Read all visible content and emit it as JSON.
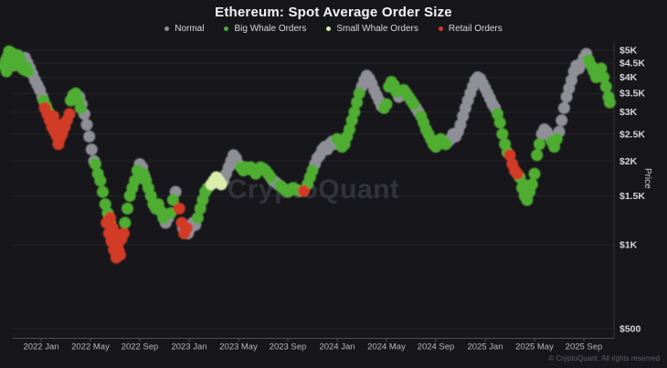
{
  "title": "Ethereum: Spot Average Order Size",
  "watermark": "CryptoQuant",
  "footer": "© CryptoQuant. All rights reserved",
  "colors": {
    "background": "#17171b",
    "grid": "#232329",
    "axis_line": "#4d4d55",
    "right_axis_line": "#33333a",
    "y_tick_text": "#d5d5d9",
    "x_tick_text": "#b7b7bd",
    "title_text": "#f4f4f6",
    "legend_text": "#d9d9dd",
    "watermark_text": "#32323a",
    "footer_text": "#5e5e65",
    "normal": "#8f8f97",
    "big_whale": "#4fae31",
    "small_whale": "#dcecac",
    "retail": "#d23b28"
  },
  "legend": [
    {
      "key": "normal",
      "label": "Normal",
      "color": "#8f8f97"
    },
    {
      "key": "big-whale",
      "label": "Big Whale Orders",
      "color": "#4fae31"
    },
    {
      "key": "small-whale",
      "label": "Small Whale Orders",
      "color": "#dcecac"
    },
    {
      "key": "retail",
      "label": "Retail Orders",
      "color": "#d23b28"
    }
  ],
  "y_axis": {
    "title": "Price",
    "scale": "log",
    "ticks": [
      {
        "label": "$5K",
        "value": 5000
      },
      {
        "label": "$4.5K",
        "value": 4500
      },
      {
        "label": "$4K",
        "value": 4000
      },
      {
        "label": "$3.5K",
        "value": 3500
      },
      {
        "label": "$3K",
        "value": 3000
      },
      {
        "label": "$2.5K",
        "value": 2500
      },
      {
        "label": "$2K",
        "value": 2000
      },
      {
        "label": "$1.5K",
        "value": 1500
      },
      {
        "label": "$1K",
        "value": 1000
      },
      {
        "label": "$500",
        "value": 500
      }
    ]
  },
  "x_axis": {
    "ticks": [
      {
        "label": "2022 Jan",
        "m": 3
      },
      {
        "label": "2022 May",
        "m": 7
      },
      {
        "label": "2022 Sep",
        "m": 11
      },
      {
        "label": "2023 Jan",
        "m": 15
      },
      {
        "label": "2023 May",
        "m": 19
      },
      {
        "label": "2023 Sep",
        "m": 23
      },
      {
        "label": "2024 Jan",
        "m": 27
      },
      {
        "label": "2024 May",
        "m": 31
      },
      {
        "label": "2024 Sep",
        "m": 35
      },
      {
        "label": "2025 Jan",
        "m": 39
      },
      {
        "label": "2025 May",
        "m": 43
      },
      {
        "label": "2025 Sep",
        "m": 47
      }
    ]
  },
  "chart_data": {
    "type": "scatter",
    "title": "Ethereum: Spot Average Order Size",
    "x_unit": "months, 0 = 2021 Oct",
    "y_unit": "ETH price USD (log scale)",
    "y_range": [
      500,
      5000
    ],
    "dot_radius": 6.5,
    "categories": {
      "n": {
        "label": "Normal",
        "color": "#8f8f97"
      },
      "b": {
        "label": "Big Whale Orders",
        "color": "#4fae31"
      },
      "s": {
        "label": "Small Whale Orders",
        "color": "#dcecac"
      },
      "r": {
        "label": "Retail Orders",
        "color": "#d23b28"
      }
    },
    "draw_order": [
      "n",
      "b",
      "s",
      "r"
    ],
    "points": [
      [
        0.0,
        4400,
        "b"
      ],
      [
        0.15,
        4600,
        "b"
      ],
      [
        0.3,
        4750,
        "b"
      ],
      [
        0.45,
        4850,
        "b"
      ],
      [
        0.6,
        4900,
        "b"
      ],
      [
        0.75,
        4800,
        "b"
      ],
      [
        0.9,
        4650,
        "b"
      ],
      [
        1.05,
        4500,
        "b"
      ],
      [
        1.2,
        4550,
        "b"
      ],
      [
        1.35,
        4400,
        "b"
      ],
      [
        1.5,
        4300,
        "b"
      ],
      [
        1.65,
        4250,
        "b"
      ],
      [
        1.8,
        4350,
        "b"
      ],
      [
        1.95,
        4200,
        "b"
      ],
      [
        0.2,
        4200,
        "b"
      ],
      [
        0.5,
        4500,
        "b"
      ],
      [
        0.8,
        4400,
        "b"
      ],
      [
        1.1,
        4800,
        "b"
      ],
      [
        0.4,
        4950,
        "b"
      ],
      [
        1.3,
        4650,
        "b"
      ],
      [
        1.7,
        4700,
        "n"
      ],
      [
        1.9,
        4500,
        "n"
      ],
      [
        2.1,
        4300,
        "n"
      ],
      [
        2.3,
        4100,
        "n"
      ],
      [
        2.5,
        3900,
        "n"
      ],
      [
        2.7,
        3750,
        "n"
      ],
      [
        2.9,
        3600,
        "n"
      ],
      [
        3.1,
        3400,
        "n"
      ],
      [
        3.2,
        3300,
        "b"
      ],
      [
        3.4,
        3150,
        "b"
      ],
      [
        3.6,
        3000,
        "b"
      ],
      [
        3.3,
        3100,
        "r"
      ],
      [
        3.5,
        2950,
        "r"
      ],
      [
        3.7,
        2800,
        "r"
      ],
      [
        3.9,
        2650,
        "r"
      ],
      [
        4.1,
        2550,
        "r"
      ],
      [
        4.3,
        2450,
        "r"
      ],
      [
        4.5,
        2400,
        "r"
      ],
      [
        4.7,
        2500,
        "r"
      ],
      [
        4.9,
        2650,
        "r"
      ],
      [
        5.1,
        2800,
        "r"
      ],
      [
        4.0,
        2900,
        "r"
      ],
      [
        4.6,
        2700,
        "r"
      ],
      [
        4.4,
        2300,
        "r"
      ],
      [
        5.3,
        2950,
        "r"
      ],
      [
        5.4,
        3300,
        "b"
      ],
      [
        5.6,
        3450,
        "b"
      ],
      [
        5.8,
        3500,
        "b"
      ],
      [
        6.0,
        3300,
        "b"
      ],
      [
        6.2,
        3100,
        "b"
      ],
      [
        6.1,
        3400,
        "n"
      ],
      [
        6.3,
        3200,
        "n"
      ],
      [
        6.5,
        2950,
        "n"
      ],
      [
        6.7,
        2700,
        "n"
      ],
      [
        6.9,
        2450,
        "n"
      ],
      [
        7.1,
        2200,
        "n"
      ],
      [
        7.3,
        2000,
        "n"
      ],
      [
        7.4,
        1950,
        "b"
      ],
      [
        7.6,
        1800,
        "b"
      ],
      [
        7.8,
        1700,
        "b"
      ],
      [
        8.0,
        1550,
        "b"
      ],
      [
        8.2,
        1400,
        "b"
      ],
      [
        8.4,
        1300,
        "b"
      ],
      [
        8.6,
        1200,
        "b"
      ],
      [
        8.3,
        1200,
        "r"
      ],
      [
        8.5,
        1100,
        "r"
      ],
      [
        8.7,
        1030,
        "r"
      ],
      [
        8.9,
        960,
        "r"
      ],
      [
        9.1,
        900,
        "r"
      ],
      [
        9.3,
        950,
        "r"
      ],
      [
        9.5,
        1050,
        "r"
      ],
      [
        9.7,
        1100,
        "r"
      ],
      [
        8.8,
        1150,
        "r"
      ],
      [
        9.2,
        1000,
        "r"
      ],
      [
        8.6,
        1250,
        "r"
      ],
      [
        9.0,
        1100,
        "r"
      ],
      [
        9.4,
        920,
        "r"
      ],
      [
        9.8,
        1200,
        "b"
      ],
      [
        10.0,
        1350,
        "b"
      ],
      [
        10.2,
        1500,
        "b"
      ],
      [
        10.4,
        1600,
        "b"
      ],
      [
        10.6,
        1700,
        "b"
      ],
      [
        10.8,
        1850,
        "b"
      ],
      [
        11.0,
        1950,
        "n"
      ],
      [
        11.2,
        1900,
        "n"
      ],
      [
        11.4,
        1750,
        "n"
      ],
      [
        11.3,
        1800,
        "b"
      ],
      [
        11.5,
        1700,
        "b"
      ],
      [
        11.7,
        1600,
        "b"
      ],
      [
        11.9,
        1500,
        "b"
      ],
      [
        12.1,
        1400,
        "b"
      ],
      [
        12.3,
        1350,
        "b"
      ],
      [
        12.5,
        1400,
        "b"
      ],
      [
        12.7,
        1320,
        "b"
      ],
      [
        12.9,
        1250,
        "b"
      ],
      [
        13.1,
        1200,
        "n"
      ],
      [
        13.3,
        1250,
        "n"
      ],
      [
        13.5,
        1300,
        "b"
      ],
      [
        13.7,
        1450,
        "b"
      ],
      [
        13.9,
        1550,
        "n"
      ],
      [
        14.2,
        1350,
        "r"
      ],
      [
        14.4,
        1200,
        "r"
      ],
      [
        14.6,
        1100,
        "r"
      ],
      [
        14.8,
        1150,
        "r"
      ],
      [
        14.5,
        1150,
        "n"
      ],
      [
        14.9,
        1100,
        "n"
      ],
      [
        15.1,
        1150,
        "n"
      ],
      [
        15.3,
        1200,
        "n"
      ],
      [
        15.5,
        1180,
        "n"
      ],
      [
        15.7,
        1250,
        "b"
      ],
      [
        15.9,
        1350,
        "b"
      ],
      [
        16.1,
        1450,
        "b"
      ],
      [
        16.3,
        1550,
        "b"
      ],
      [
        16.5,
        1600,
        "b"
      ],
      [
        16.8,
        1650,
        "s"
      ],
      [
        17.0,
        1700,
        "s"
      ],
      [
        17.2,
        1750,
        "s"
      ],
      [
        17.4,
        1700,
        "s"
      ],
      [
        17.6,
        1650,
        "s"
      ],
      [
        17.8,
        1700,
        "n"
      ],
      [
        18.0,
        1800,
        "n"
      ],
      [
        18.2,
        1900,
        "n"
      ],
      [
        18.4,
        2000,
        "n"
      ],
      [
        18.6,
        2100,
        "n"
      ],
      [
        18.8,
        2050,
        "n"
      ],
      [
        19.0,
        1950,
        "n"
      ],
      [
        19.2,
        1900,
        "b"
      ],
      [
        19.4,
        1850,
        "b"
      ],
      [
        19.6,
        1900,
        "b"
      ],
      [
        19.8,
        1870,
        "b"
      ],
      [
        20.0,
        1900,
        "b"
      ],
      [
        20.2,
        1850,
        "b"
      ],
      [
        20.4,
        1800,
        "b"
      ],
      [
        20.6,
        1850,
        "b"
      ],
      [
        20.8,
        1900,
        "b"
      ],
      [
        21.0,
        1880,
        "b"
      ],
      [
        21.2,
        1850,
        "b"
      ],
      [
        21.4,
        1800,
        "b"
      ],
      [
        21.6,
        1750,
        "b"
      ],
      [
        21.8,
        1700,
        "n"
      ],
      [
        22.0,
        1680,
        "n"
      ],
      [
        22.2,
        1650,
        "n"
      ],
      [
        22.4,
        1630,
        "b"
      ],
      [
        22.6,
        1600,
        "b"
      ],
      [
        22.8,
        1570,
        "b"
      ],
      [
        23.0,
        1550,
        "b"
      ],
      [
        23.2,
        1570,
        "b"
      ],
      [
        23.4,
        1600,
        "b"
      ],
      [
        23.7,
        1580,
        "b"
      ],
      [
        24.0,
        1560,
        "b"
      ],
      [
        24.3,
        1560,
        "r"
      ],
      [
        24.6,
        1650,
        "b"
      ],
      [
        24.8,
        1750,
        "b"
      ],
      [
        25.0,
        1850,
        "b"
      ],
      [
        25.2,
        1950,
        "n"
      ],
      [
        25.4,
        2050,
        "n"
      ],
      [
        25.6,
        2100,
        "n"
      ],
      [
        25.8,
        2200,
        "n"
      ],
      [
        26.0,
        2250,
        "n"
      ],
      [
        26.2,
        2200,
        "n"
      ],
      [
        26.4,
        2300,
        "n"
      ],
      [
        26.6,
        2350,
        "n"
      ],
      [
        26.8,
        2300,
        "n"
      ],
      [
        27.0,
        2400,
        "b"
      ],
      [
        27.2,
        2350,
        "b"
      ],
      [
        27.4,
        2250,
        "b"
      ],
      [
        27.6,
        2300,
        "b"
      ],
      [
        27.8,
        2450,
        "b"
      ],
      [
        28.0,
        2600,
        "b"
      ],
      [
        28.2,
        2800,
        "b"
      ],
      [
        28.4,
        3000,
        "b"
      ],
      [
        28.6,
        3250,
        "b"
      ],
      [
        28.8,
        3500,
        "b"
      ],
      [
        29.0,
        3700,
        "n"
      ],
      [
        29.2,
        3900,
        "n"
      ],
      [
        29.4,
        4050,
        "n"
      ],
      [
        29.6,
        3950,
        "n"
      ],
      [
        29.8,
        3800,
        "n"
      ],
      [
        30.0,
        3600,
        "n"
      ],
      [
        30.2,
        3450,
        "n"
      ],
      [
        30.4,
        3300,
        "n"
      ],
      [
        30.6,
        3150,
        "n"
      ],
      [
        30.8,
        3100,
        "b"
      ],
      [
        31.0,
        3200,
        "b"
      ],
      [
        31.2,
        3700,
        "b"
      ],
      [
        31.4,
        3850,
        "b"
      ],
      [
        31.6,
        3750,
        "b"
      ],
      [
        31.8,
        3550,
        "b"
      ],
      [
        32.0,
        3400,
        "n"
      ],
      [
        32.2,
        3500,
        "n"
      ],
      [
        32.4,
        3600,
        "b"
      ],
      [
        32.6,
        3500,
        "b"
      ],
      [
        32.8,
        3400,
        "b"
      ],
      [
        33.0,
        3300,
        "b"
      ],
      [
        33.2,
        3200,
        "b"
      ],
      [
        33.4,
        3100,
        "n"
      ],
      [
        33.6,
        3000,
        "n"
      ],
      [
        33.8,
        2900,
        "b"
      ],
      [
        34.0,
        2750,
        "b"
      ],
      [
        34.2,
        2600,
        "b"
      ],
      [
        34.4,
        2500,
        "b"
      ],
      [
        34.6,
        2400,
        "b"
      ],
      [
        34.8,
        2300,
        "b"
      ],
      [
        35.0,
        2250,
        "b"
      ],
      [
        35.2,
        2300,
        "b"
      ],
      [
        35.4,
        2400,
        "b"
      ],
      [
        35.6,
        2350,
        "b"
      ],
      [
        35.8,
        2300,
        "b"
      ],
      [
        36.0,
        2350,
        "n"
      ],
      [
        36.2,
        2400,
        "n"
      ],
      [
        36.4,
        2500,
        "n"
      ],
      [
        36.6,
        2450,
        "n"
      ],
      [
        36.8,
        2550,
        "n"
      ],
      [
        37.0,
        2700,
        "n"
      ],
      [
        37.2,
        2900,
        "n"
      ],
      [
        37.4,
        3100,
        "n"
      ],
      [
        37.6,
        3300,
        "n"
      ],
      [
        37.8,
        3500,
        "n"
      ],
      [
        38.0,
        3700,
        "n"
      ],
      [
        38.2,
        3900,
        "n"
      ],
      [
        38.4,
        4000,
        "n"
      ],
      [
        38.6,
        3950,
        "n"
      ],
      [
        38.8,
        3800,
        "n"
      ],
      [
        39.0,
        3650,
        "n"
      ],
      [
        39.2,
        3500,
        "n"
      ],
      [
        39.4,
        3350,
        "n"
      ],
      [
        39.6,
        3200,
        "n"
      ],
      [
        39.8,
        3100,
        "n"
      ],
      [
        40.0,
        2950,
        "b"
      ],
      [
        40.2,
        2750,
        "b"
      ],
      [
        40.4,
        2500,
        "b"
      ],
      [
        40.6,
        2300,
        "b"
      ],
      [
        40.8,
        2150,
        "b"
      ],
      [
        41.0,
        2100,
        "r"
      ],
      [
        41.2,
        1950,
        "r"
      ],
      [
        41.4,
        1850,
        "r"
      ],
      [
        41.6,
        1800,
        "r"
      ],
      [
        41.8,
        1750,
        "b"
      ],
      [
        42.0,
        1600,
        "b"
      ],
      [
        42.2,
        1500,
        "b"
      ],
      [
        42.4,
        1450,
        "b"
      ],
      [
        42.6,
        1550,
        "b"
      ],
      [
        42.8,
        1650,
        "b"
      ],
      [
        43.0,
        1800,
        "b"
      ],
      [
        42.1,
        1650,
        "b"
      ],
      [
        42.3,
        1600,
        "b"
      ],
      [
        43.2,
        2100,
        "b"
      ],
      [
        43.4,
        2300,
        "b"
      ],
      [
        43.6,
        2500,
        "n"
      ],
      [
        43.8,
        2600,
        "n"
      ],
      [
        44.0,
        2550,
        "n"
      ],
      [
        44.2,
        2450,
        "n"
      ],
      [
        44.4,
        2350,
        "b"
      ],
      [
        44.6,
        2250,
        "b"
      ],
      [
        44.8,
        2400,
        "b"
      ],
      [
        45.0,
        2550,
        "n"
      ],
      [
        45.2,
        2800,
        "n"
      ],
      [
        45.4,
        3100,
        "n"
      ],
      [
        45.6,
        3400,
        "n"
      ],
      [
        45.8,
        3650,
        "n"
      ],
      [
        46.0,
        3900,
        "n"
      ],
      [
        46.2,
        4200,
        "n"
      ],
      [
        46.4,
        4400,
        "n"
      ],
      [
        46.6,
        4300,
        "n"
      ],
      [
        46.8,
        4500,
        "n"
      ],
      [
        47.0,
        4700,
        "n"
      ],
      [
        47.2,
        4850,
        "n"
      ],
      [
        47.4,
        4600,
        "b"
      ],
      [
        47.6,
        4400,
        "b"
      ],
      [
        47.8,
        4200,
        "b"
      ],
      [
        48.0,
        4000,
        "b"
      ],
      [
        48.2,
        4150,
        "b"
      ],
      [
        48.4,
        4300,
        "b"
      ],
      [
        48.6,
        4000,
        "b"
      ],
      [
        48.8,
        3700,
        "b"
      ],
      [
        49.0,
        3400,
        "b"
      ],
      [
        49.1,
        3250,
        "b"
      ]
    ]
  }
}
